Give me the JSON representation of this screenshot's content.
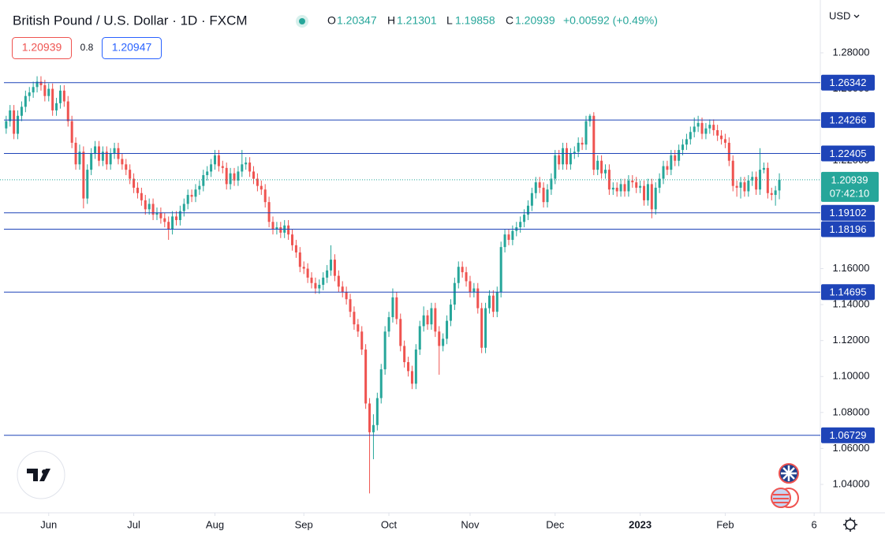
{
  "chart_data": {
    "type": "candlestick",
    "title": "British Pound / U.S. Dollar · 1D · FXCM",
    "header": {
      "o_label": "O",
      "open": 1.20347,
      "h_label": "H",
      "high": 1.21301,
      "l_label": "L",
      "low": 1.19858,
      "c_label": "C",
      "close": 1.20939,
      "change": "+0.00592 (+0.49%)"
    },
    "sell": 1.20939,
    "spread": 0.8,
    "buy": 1.20947,
    "currency": "USD",
    "up_color": "#26a69a",
    "down_color": "#ef5350",
    "level_color": "#1e44b8",
    "levels": [
      1.26342,
      1.24266,
      1.22405,
      1.19102,
      1.18196,
      1.14695,
      1.06729
    ],
    "last_price": 1.20939,
    "countdown": "07:42:10",
    "xlim": [
      -1.6,
      210.6
    ],
    "xticks": [
      {
        "value": 11,
        "label": "Jun"
      },
      {
        "value": 33,
        "label": "Jul"
      },
      {
        "value": 54,
        "label": "Aug"
      },
      {
        "value": 77,
        "label": "Sep"
      },
      {
        "value": 99,
        "label": "Oct"
      },
      {
        "value": 120,
        "label": "Nov"
      },
      {
        "value": 142,
        "label": "Dec"
      },
      {
        "value": 164,
        "label": "2023"
      },
      {
        "value": 186,
        "label": "Feb"
      },
      {
        "value": 209,
        "label": "6"
      }
    ],
    "ylim": [
      1.0242,
      1.3094
    ],
    "yticks": [
      {
        "value": 1.28,
        "label": "1.28000"
      },
      {
        "value": 1.26,
        "label": "1.26000"
      },
      {
        "value": 1.24,
        "label": "1.24000"
      },
      {
        "value": 1.22,
        "label": "1.22000"
      },
      {
        "value": 1.2,
        "label": "1.20000"
      },
      {
        "value": 1.18,
        "label": "1.18000"
      },
      {
        "value": 1.16,
        "label": "1.16000"
      },
      {
        "value": 1.14,
        "label": "1.14000"
      },
      {
        "value": 1.12,
        "label": "1.12000"
      },
      {
        "value": 1.1,
        "label": "1.10000"
      },
      {
        "value": 1.08,
        "label": "1.08000"
      },
      {
        "value": 1.06,
        "label": "1.06000"
      },
      {
        "value": 1.04,
        "label": "1.04000"
      }
    ],
    "ohlc": [
      [
        1.238,
        1.245,
        1.235,
        1.242
      ],
      [
        1.242,
        1.251,
        1.239,
        1.248
      ],
      [
        1.248,
        1.251,
        1.232,
        1.235
      ],
      [
        1.235,
        1.248,
        1.232,
        1.245
      ],
      [
        1.245,
        1.253,
        1.242,
        1.25
      ],
      [
        1.25,
        1.259,
        1.247,
        1.256
      ],
      [
        1.256,
        1.261,
        1.253,
        1.258
      ],
      [
        1.258,
        1.264,
        1.255,
        1.261
      ],
      [
        1.261,
        1.267,
        1.258,
        1.264
      ],
      [
        1.264,
        1.267,
        1.259,
        1.262
      ],
      [
        1.262,
        1.265,
        1.253,
        1.256
      ],
      [
        1.256,
        1.263,
        1.253,
        1.26
      ],
      [
        1.26,
        1.263,
        1.245,
        1.248
      ],
      [
        1.248,
        1.255,
        1.245,
        1.252
      ],
      [
        1.252,
        1.262,
        1.249,
        1.259
      ],
      [
        1.259,
        1.262,
        1.25,
        1.253
      ],
      [
        1.253,
        1.256,
        1.239,
        1.242
      ],
      [
        1.242,
        1.245,
        1.227,
        1.23
      ],
      [
        1.23,
        1.233,
        1.215,
        1.218
      ],
      [
        1.218,
        1.229,
        1.215,
        1.225
      ],
      [
        1.225,
        1.228,
        1.1935,
        1.199
      ],
      [
        1.199,
        1.218,
        1.196,
        1.215
      ],
      [
        1.215,
        1.227,
        1.212,
        1.224
      ],
      [
        1.224,
        1.231,
        1.221,
        1.228
      ],
      [
        1.228,
        1.231,
        1.217,
        1.22
      ],
      [
        1.22,
        1.228,
        1.217,
        1.225
      ],
      [
        1.225,
        1.228,
        1.215,
        1.218
      ],
      [
        1.218,
        1.227,
        1.215,
        1.224
      ],
      [
        1.224,
        1.23,
        1.221,
        1.227
      ],
      [
        1.227,
        1.23,
        1.218,
        1.221
      ],
      [
        1.221,
        1.224,
        1.215,
        1.218
      ],
      [
        1.218,
        1.221,
        1.212,
        1.215
      ],
      [
        1.215,
        1.218,
        1.207,
        1.21
      ],
      [
        1.21,
        1.213,
        1.202,
        1.205
      ],
      [
        1.205,
        1.208,
        1.199,
        1.202
      ],
      [
        1.202,
        1.205,
        1.195,
        1.198
      ],
      [
        1.198,
        1.201,
        1.19,
        1.193
      ],
      [
        1.193,
        1.199,
        1.19,
        1.196
      ],
      [
        1.196,
        1.199,
        1.187,
        1.19
      ],
      [
        1.19,
        1.194,
        1.187,
        1.191
      ],
      [
        1.191,
        1.194,
        1.185,
        1.188
      ],
      [
        1.188,
        1.191,
        1.183,
        1.186
      ],
      [
        1.186,
        1.189,
        1.176,
        1.182
      ],
      [
        1.182,
        1.192,
        1.179,
        1.189
      ],
      [
        1.189,
        1.192,
        1.184,
        1.187
      ],
      [
        1.187,
        1.195,
        1.184,
        1.192
      ],
      [
        1.192,
        1.199,
        1.189,
        1.196
      ],
      [
        1.196,
        1.204,
        1.193,
        1.201
      ],
      [
        1.201,
        1.204,
        1.197,
        1.2
      ],
      [
        1.2,
        1.207,
        1.197,
        1.204
      ],
      [
        1.204,
        1.209,
        1.201,
        1.206
      ],
      [
        1.206,
        1.215,
        1.203,
        1.212
      ],
      [
        1.212,
        1.217,
        1.209,
        1.214
      ],
      [
        1.214,
        1.221,
        1.211,
        1.218
      ],
      [
        1.218,
        1.226,
        1.215,
        1.223
      ],
      [
        1.223,
        1.226,
        1.214,
        1.217
      ],
      [
        1.217,
        1.22,
        1.213,
        1.216
      ],
      [
        1.216,
        1.219,
        1.204,
        1.207
      ],
      [
        1.207,
        1.216,
        1.204,
        1.213
      ],
      [
        1.213,
        1.216,
        1.206,
        1.209
      ],
      [
        1.209,
        1.217,
        1.206,
        1.214
      ],
      [
        1.214,
        1.226,
        1.211,
        1.218
      ],
      [
        1.218,
        1.222,
        1.215,
        1.219
      ],
      [
        1.219,
        1.222,
        1.211,
        1.214
      ],
      [
        1.214,
        1.217,
        1.207,
        1.21
      ],
      [
        1.21,
        1.213,
        1.203,
        1.206
      ],
      [
        1.206,
        1.209,
        1.201,
        1.204
      ],
      [
        1.204,
        1.207,
        1.194,
        1.197
      ],
      [
        1.197,
        1.2,
        1.183,
        1.186
      ],
      [
        1.186,
        1.189,
        1.179,
        1.182
      ],
      [
        1.182,
        1.186,
        1.179,
        1.183
      ],
      [
        1.183,
        1.186,
        1.177,
        1.18
      ],
      [
        1.18,
        1.187,
        1.177,
        1.184
      ],
      [
        1.184,
        1.187,
        1.176,
        1.179
      ],
      [
        1.179,
        1.182,
        1.17,
        1.173
      ],
      [
        1.173,
        1.176,
        1.166,
        1.169
      ],
      [
        1.169,
        1.172,
        1.158,
        1.161
      ],
      [
        1.161,
        1.164,
        1.157,
        1.16
      ],
      [
        1.16,
        1.163,
        1.152,
        1.155
      ],
      [
        1.155,
        1.158,
        1.149,
        1.152
      ],
      [
        1.152,
        1.155,
        1.146,
        1.149
      ],
      [
        1.149,
        1.154,
        1.146,
        1.151
      ],
      [
        1.151,
        1.158,
        1.148,
        1.155
      ],
      [
        1.155,
        1.162,
        1.152,
        1.159
      ],
      [
        1.159,
        1.173,
        1.156,
        1.165
      ],
      [
        1.165,
        1.168,
        1.153,
        1.156
      ],
      [
        1.156,
        1.159,
        1.147,
        1.15
      ],
      [
        1.15,
        1.153,
        1.144,
        1.147
      ],
      [
        1.147,
        1.15,
        1.14,
        1.143
      ],
      [
        1.143,
        1.146,
        1.133,
        1.136
      ],
      [
        1.136,
        1.139,
        1.126,
        1.129
      ],
      [
        1.129,
        1.132,
        1.122,
        1.125
      ],
      [
        1.125,
        1.128,
        1.112,
        1.115
      ],
      [
        1.115,
        1.118,
        1.082,
        1.085
      ],
      [
        1.085,
        1.088,
        1.035,
        1.069
      ],
      [
        1.069,
        1.079,
        1.054,
        1.073
      ],
      [
        1.073,
        1.091,
        1.07,
        1.088
      ],
      [
        1.088,
        1.107,
        1.085,
        1.104
      ],
      [
        1.104,
        1.128,
        1.101,
        1.125
      ],
      [
        1.125,
        1.136,
        1.122,
        1.133
      ],
      [
        1.133,
        1.149,
        1.13,
        1.144
      ],
      [
        1.144,
        1.147,
        1.129,
        1.132
      ],
      [
        1.132,
        1.135,
        1.114,
        1.117
      ],
      [
        1.117,
        1.12,
        1.105,
        1.108
      ],
      [
        1.108,
        1.111,
        1.1,
        1.103
      ],
      [
        1.103,
        1.106,
        1.093,
        1.096
      ],
      [
        1.096,
        1.118,
        1.093,
        1.115
      ],
      [
        1.115,
        1.131,
        1.112,
        1.128
      ],
      [
        1.128,
        1.139,
        1.125,
        1.134
      ],
      [
        1.134,
        1.137,
        1.126,
        1.129
      ],
      [
        1.129,
        1.141,
        1.126,
        1.138
      ],
      [
        1.138,
        1.141,
        1.122,
        1.125
      ],
      [
        1.125,
        1.128,
        1.101,
        1.117
      ],
      [
        1.117,
        1.124,
        1.114,
        1.121
      ],
      [
        1.121,
        1.134,
        1.118,
        1.131
      ],
      [
        1.131,
        1.143,
        1.128,
        1.14
      ],
      [
        1.14,
        1.155,
        1.137,
        1.152
      ],
      [
        1.152,
        1.164,
        1.149,
        1.161
      ],
      [
        1.161,
        1.164,
        1.155,
        1.158
      ],
      [
        1.158,
        1.161,
        1.15,
        1.153
      ],
      [
        1.153,
        1.156,
        1.144,
        1.147
      ],
      [
        1.147,
        1.152,
        1.144,
        1.149
      ],
      [
        1.149,
        1.152,
        1.135,
        1.138
      ],
      [
        1.138,
        1.141,
        1.113,
        1.116
      ],
      [
        1.116,
        1.141,
        1.113,
        1.138
      ],
      [
        1.138,
        1.148,
        1.135,
        1.145
      ],
      [
        1.145,
        1.148,
        1.133,
        1.136
      ],
      [
        1.136,
        1.15,
        1.133,
        1.147
      ],
      [
        1.147,
        1.175,
        1.144,
        1.172
      ],
      [
        1.172,
        1.182,
        1.169,
        1.179
      ],
      [
        1.179,
        1.182,
        1.173,
        1.176
      ],
      [
        1.176,
        1.184,
        1.173,
        1.181
      ],
      [
        1.181,
        1.186,
        1.178,
        1.183
      ],
      [
        1.183,
        1.189,
        1.18,
        1.186
      ],
      [
        1.186,
        1.193,
        1.183,
        1.19
      ],
      [
        1.19,
        1.198,
        1.187,
        1.195
      ],
      [
        1.195,
        1.205,
        1.192,
        1.202
      ],
      [
        1.202,
        1.211,
        1.199,
        1.208
      ],
      [
        1.208,
        1.211,
        1.202,
        1.205
      ],
      [
        1.205,
        1.208,
        1.194,
        1.197
      ],
      [
        1.197,
        1.207,
        1.194,
        1.204
      ],
      [
        1.204,
        1.213,
        1.201,
        1.21
      ],
      [
        1.21,
        1.226,
        1.207,
        1.223
      ],
      [
        1.223,
        1.226,
        1.215,
        1.218
      ],
      [
        1.218,
        1.23,
        1.215,
        1.227
      ],
      [
        1.227,
        1.23,
        1.215,
        1.218
      ],
      [
        1.218,
        1.227,
        1.215,
        1.224
      ],
      [
        1.224,
        1.228,
        1.221,
        1.225
      ],
      [
        1.225,
        1.233,
        1.222,
        1.23
      ],
      [
        1.23,
        1.233,
        1.226,
        1.229
      ],
      [
        1.229,
        1.245,
        1.226,
        1.242
      ],
      [
        1.242,
        1.246,
        1.239,
        1.245
      ],
      [
        1.245,
        1.247,
        1.212,
        1.215
      ],
      [
        1.215,
        1.223,
        1.212,
        1.22
      ],
      [
        1.22,
        1.223,
        1.21,
        1.213
      ],
      [
        1.213,
        1.218,
        1.21,
        1.215
      ],
      [
        1.215,
        1.218,
        1.201,
        1.204
      ],
      [
        1.204,
        1.208,
        1.201,
        1.205
      ],
      [
        1.205,
        1.208,
        1.2,
        1.203
      ],
      [
        1.203,
        1.21,
        1.2,
        1.207
      ],
      [
        1.207,
        1.21,
        1.2,
        1.203
      ],
      [
        1.203,
        1.212,
        1.2,
        1.209
      ],
      [
        1.209,
        1.212,
        1.205,
        1.208
      ],
      [
        1.208,
        1.211,
        1.202,
        1.205
      ],
      [
        1.205,
        1.209,
        1.202,
        1.206
      ],
      [
        1.206,
        1.209,
        1.195,
        1.198
      ],
      [
        1.198,
        1.21,
        1.195,
        1.207
      ],
      [
        1.207,
        1.21,
        1.188,
        1.193
      ],
      [
        1.193,
        1.208,
        1.19,
        1.205
      ],
      [
        1.205,
        1.213,
        1.202,
        1.21
      ],
      [
        1.21,
        1.22,
        1.207,
        1.217
      ],
      [
        1.217,
        1.22,
        1.212,
        1.215
      ],
      [
        1.215,
        1.226,
        1.212,
        1.223
      ],
      [
        1.223,
        1.226,
        1.217,
        1.22
      ],
      [
        1.22,
        1.229,
        1.217,
        1.226
      ],
      [
        1.226,
        1.232,
        1.223,
        1.229
      ],
      [
        1.229,
        1.235,
        1.226,
        1.232
      ],
      [
        1.232,
        1.239,
        1.229,
        1.236
      ],
      [
        1.236,
        1.244,
        1.233,
        1.239
      ],
      [
        1.239,
        1.245,
        1.236,
        1.241
      ],
      [
        1.241,
        1.244,
        1.232,
        1.235
      ],
      [
        1.235,
        1.241,
        1.232,
        1.238
      ],
      [
        1.238,
        1.243,
        1.235,
        1.24
      ],
      [
        1.24,
        1.243,
        1.234,
        1.237
      ],
      [
        1.237,
        1.24,
        1.231,
        1.234
      ],
      [
        1.234,
        1.237,
        1.229,
        1.232
      ],
      [
        1.232,
        1.235,
        1.227,
        1.23
      ],
      [
        1.23,
        1.233,
        1.217,
        1.22
      ],
      [
        1.22,
        1.223,
        1.203,
        1.206
      ],
      [
        1.206,
        1.209,
        1.2,
        1.205
      ],
      [
        1.205,
        1.211,
        1.199,
        1.208
      ],
      [
        1.208,
        1.211,
        1.2,
        1.203
      ],
      [
        1.203,
        1.212,
        1.2,
        1.209
      ],
      [
        1.209,
        1.214,
        1.206,
        1.211
      ],
      [
        1.211,
        1.214,
        1.201,
        1.204
      ],
      [
        1.204,
        1.227,
        1.201,
        1.215
      ],
      [
        1.215,
        1.219,
        1.213,
        1.216
      ],
      [
        1.216,
        1.219,
        1.199,
        1.202
      ],
      [
        1.202,
        1.205,
        1.198,
        1.201
      ],
      [
        1.201,
        1.206,
        1.195,
        1.2035
      ],
      [
        1.20347,
        1.21301,
        1.19858,
        1.20939
      ]
    ]
  }
}
